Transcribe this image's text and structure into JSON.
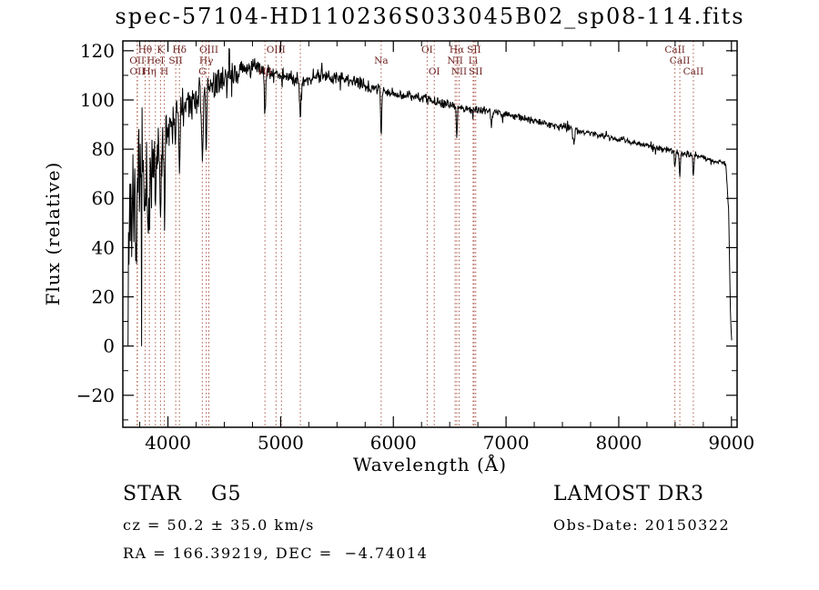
{
  "title": "spec-57104-HD110236S033045B02_sp08-114.fits",
  "chart_data": {
    "type": "line",
    "title": "spec-57104-HD110236S033045B02_sp08-114.fits",
    "xlabel": "Wavelength (Å)",
    "ylabel": "Flux (relative)",
    "xlim": [
      3600,
      9050
    ],
    "ylim": [
      -33,
      124
    ],
    "xticks": [
      4000,
      5000,
      6000,
      7000,
      8000,
      9000
    ],
    "yticks": [
      -20,
      0,
      20,
      40,
      60,
      80,
      100,
      120
    ],
    "x_minor_step": 250,
    "y_minor_step": 10,
    "grid": false,
    "legend": "none",
    "line_color": "#000000",
    "marker_line_color": "#aa5544",
    "marker_label_color": "#6b1f1f",
    "spectral_lines": [
      {
        "wavelength": 3727,
        "label": "OII",
        "row": 2
      },
      {
        "wavelength": 3729,
        "label": "OII",
        "row": 3
      },
      {
        "wavelength": 3798,
        "label": "Hθ",
        "row": 1
      },
      {
        "wavelength": 3835,
        "label": "Hη",
        "row": 3
      },
      {
        "wavelength": 3889,
        "label": "HeI",
        "row": 2
      },
      {
        "wavelength": 3934,
        "label": "K",
        "row": 1
      },
      {
        "wavelength": 3968,
        "label": "H",
        "row": 3
      },
      {
        "wavelength": 4069,
        "label": "SII",
        "row": 2
      },
      {
        "wavelength": 4102,
        "label": "Hδ",
        "row": 1
      },
      {
        "wavelength": 4305,
        "label": "G",
        "row": 3
      },
      {
        "wavelength": 4340,
        "label": "Hγ",
        "row": 2
      },
      {
        "wavelength": 4363,
        "label": "OIII",
        "row": 1
      },
      {
        "wavelength": 4861,
        "label": "Hβ",
        "row": 3
      },
      {
        "wavelength": 4959,
        "label": "OIII",
        "row": 1
      },
      {
        "wavelength": 5007,
        "label": "",
        "row": 0
      },
      {
        "wavelength": 5175,
        "label": "",
        "row": 0
      },
      {
        "wavelength": 5892,
        "label": "Na",
        "row": 2
      },
      {
        "wavelength": 6300,
        "label": "OI",
        "row": 1
      },
      {
        "wavelength": 6363,
        "label": "OI",
        "row": 3
      },
      {
        "wavelength": 6548,
        "label": "NII",
        "row": 2
      },
      {
        "wavelength": 6563,
        "label": "Hα",
        "row": 1
      },
      {
        "wavelength": 6583,
        "label": "NII",
        "row": 3
      },
      {
        "wavelength": 6708,
        "label": "Li",
        "row": 2
      },
      {
        "wavelength": 6716,
        "label": "SII",
        "row": 1
      },
      {
        "wavelength": 6731,
        "label": "SII",
        "row": 3
      },
      {
        "wavelength": 8498,
        "label": "CaII",
        "row": 1
      },
      {
        "wavelength": 8542,
        "label": "CaII",
        "row": 2
      },
      {
        "wavelength": 8662,
        "label": "CaII",
        "row": 3
      }
    ],
    "spectrum_model": {
      "seed": 7,
      "step": 4,
      "range": [
        3646,
        9002
      ],
      "continuum": [
        [
          3640,
          20
        ],
        [
          3660,
          55
        ],
        [
          3700,
          58
        ],
        [
          3750,
          60
        ],
        [
          3800,
          66
        ],
        [
          3850,
          70
        ],
        [
          3900,
          76
        ],
        [
          3950,
          84
        ],
        [
          4000,
          90
        ],
        [
          4050,
          93
        ],
        [
          4100,
          96
        ],
        [
          4150,
          97
        ],
        [
          4200,
          99
        ],
        [
          4250,
          101
        ],
        [
          4300,
          102
        ],
        [
          4350,
          104
        ],
        [
          4400,
          106
        ],
        [
          4500,
          109
        ],
        [
          4600,
          111
        ],
        [
          4700,
          113
        ],
        [
          4800,
          113
        ],
        [
          4850,
          112
        ],
        [
          4900,
          111
        ],
        [
          5000,
          110
        ],
        [
          5100,
          109
        ],
        [
          5200,
          108
        ],
        [
          5300,
          110
        ],
        [
          5400,
          110
        ],
        [
          5500,
          109
        ],
        [
          5600,
          108
        ],
        [
          5700,
          107
        ],
        [
          5800,
          105
        ],
        [
          5900,
          104
        ],
        [
          6000,
          103
        ],
        [
          6100,
          102
        ],
        [
          6250,
          101
        ],
        [
          6400,
          99
        ],
        [
          6500,
          98
        ],
        [
          6600,
          97
        ],
        [
          6750,
          96
        ],
        [
          6900,
          95
        ],
        [
          7000,
          94
        ],
        [
          7200,
          92
        ],
        [
          7400,
          90
        ],
        [
          7600,
          88
        ],
        [
          7800,
          86
        ],
        [
          8000,
          84
        ],
        [
          8200,
          82
        ],
        [
          8400,
          80
        ],
        [
          8600,
          78
        ],
        [
          8800,
          76
        ],
        [
          8950,
          74
        ],
        [
          8975,
          55
        ],
        [
          8990,
          15
        ],
        [
          9000,
          2
        ]
      ],
      "absorption": [
        {
          "center": 3727,
          "depth": 12,
          "width": 8
        },
        {
          "center": 3798,
          "depth": 18,
          "width": 8
        },
        {
          "center": 3835,
          "depth": 20,
          "width": 8
        },
        {
          "center": 3889,
          "depth": 22,
          "width": 9
        },
        {
          "center": 3934,
          "depth": 34,
          "width": 11
        },
        {
          "center": 3968,
          "depth": 30,
          "width": 11
        },
        {
          "center": 4069,
          "depth": 10,
          "width": 6
        },
        {
          "center": 4102,
          "depth": 28,
          "width": 10
        },
        {
          "center": 4305,
          "depth": 22,
          "width": 16
        },
        {
          "center": 4340,
          "depth": 24,
          "width": 10
        },
        {
          "center": 4861,
          "depth": 20,
          "width": 10
        },
        {
          "center": 5175,
          "depth": 13,
          "width": 14
        },
        {
          "center": 5892,
          "depth": 18,
          "width": 9
        },
        {
          "center": 6563,
          "depth": 14,
          "width": 9
        },
        {
          "center": 6870,
          "depth": 5,
          "width": 12
        },
        {
          "center": 7600,
          "depth": 6,
          "width": 16
        },
        {
          "center": 8498,
          "depth": 7,
          "width": 8
        },
        {
          "center": 8542,
          "depth": 9,
          "width": 9
        },
        {
          "center": 8662,
          "depth": 8,
          "width": 9
        }
      ],
      "noise_envelope": [
        [
          3646,
          40
        ],
        [
          3700,
          34
        ],
        [
          3750,
          30
        ],
        [
          3800,
          26
        ],
        [
          3850,
          22
        ],
        [
          3900,
          18
        ],
        [
          3950,
          15
        ],
        [
          4000,
          12
        ],
        [
          4100,
          10
        ],
        [
          4200,
          9
        ],
        [
          4300,
          8
        ],
        [
          4500,
          6
        ],
        [
          4700,
          5
        ],
        [
          5000,
          4
        ],
        [
          5500,
          3.2
        ],
        [
          6000,
          2.6
        ],
        [
          6500,
          2.2
        ],
        [
          7000,
          1.8
        ],
        [
          7500,
          1.6
        ],
        [
          8000,
          1.5
        ],
        [
          8600,
          1.6
        ],
        [
          9000,
          1.2
        ]
      ]
    }
  },
  "footer": {
    "class_label": "STAR    G5",
    "survey": "LAMOST DR3",
    "cz": "cz = 50.2 ± 35.0 km/s",
    "obs_date": "Obs-Date: 20150322",
    "ra_dec": "RA = 166.39219, DEC =  −4.74014"
  }
}
